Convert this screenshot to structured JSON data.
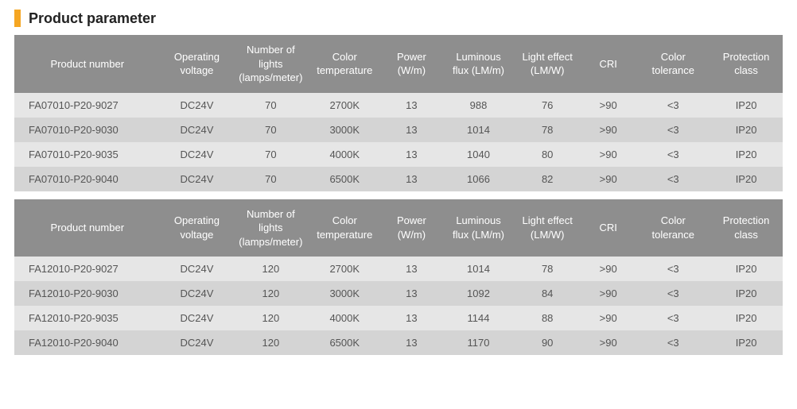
{
  "title": "Product parameter",
  "accent_color": "#f5a623",
  "header_bg": "#8e8e8e",
  "header_fg": "#ffffff",
  "row_light_bg": "#e6e6e6",
  "row_dark_bg": "#d4d4d4",
  "text_color": "#555555",
  "columns": [
    "Product number",
    "Operating voltage",
    "Number of lights (lamps/meter)",
    "Color temperature",
    "Power (W/m)",
    "Luminous flux (LM/m)",
    "Light effect (LM/W)",
    "CRI",
    "Color tolerance",
    "Protection class"
  ],
  "tables": [
    {
      "rows": [
        [
          "FA07010-P20-9027",
          "DC24V",
          "70",
          "2700K",
          "13",
          "988",
          "76",
          ">90",
          "<3",
          "IP20"
        ],
        [
          "FA07010-P20-9030",
          "DC24V",
          "70",
          "3000K",
          "13",
          "1014",
          "78",
          ">90",
          "<3",
          "IP20"
        ],
        [
          "FA07010-P20-9035",
          "DC24V",
          "70",
          "4000K",
          "13",
          "1040",
          "80",
          ">90",
          "<3",
          "IP20"
        ],
        [
          "FA07010-P20-9040",
          "DC24V",
          "70",
          "6500K",
          "13",
          "1066",
          "82",
          ">90",
          "<3",
          "IP20"
        ]
      ]
    },
    {
      "rows": [
        [
          "FA12010-P20-9027",
          "DC24V",
          "120",
          "2700K",
          "13",
          "1014",
          "78",
          ">90",
          "<3",
          "IP20"
        ],
        [
          "FA12010-P20-9030",
          "DC24V",
          "120",
          "3000K",
          "13",
          "1092",
          "84",
          ">90",
          "<3",
          "IP20"
        ],
        [
          "FA12010-P20-9035",
          "DC24V",
          "120",
          "4000K",
          "13",
          "1144",
          "88",
          ">90",
          "<3",
          "IP20"
        ],
        [
          "FA12010-P20-9040",
          "DC24V",
          "120",
          "6500K",
          "13",
          "1170",
          "90",
          ">90",
          "<3",
          "IP20"
        ]
      ]
    }
  ]
}
